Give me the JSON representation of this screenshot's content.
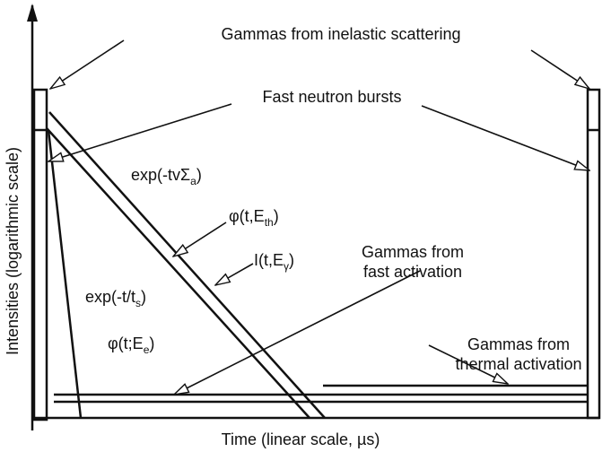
{
  "axes": {
    "x_label": "Time (linear scale, µs)",
    "y_label": "Intensities (logarithmic scale)"
  },
  "labels": {
    "inelastic": "Gammas from inelastic scattering",
    "bursts": "Fast neutron bursts",
    "fast_activation": [
      "Gammas from",
      "fast activation"
    ],
    "thermal_activation": [
      "Gammas from",
      "thermal activation"
    ]
  },
  "formulas": {
    "thermal_decay": {
      "base": "exp(-tvΣ",
      "sub": "a",
      "tail": ")"
    },
    "phi_thermal": {
      "base": "φ(t,E",
      "sub": "th",
      "tail": ")"
    },
    "gamma_intensity": {
      "base": "I(t,E",
      "sub": "γ",
      "tail": ")"
    },
    "fast_decay": {
      "base": "exp(-t/t",
      "sub": "s",
      "tail": ")"
    },
    "phi_epithermal": {
      "base": "φ(t;E",
      "sub": "e",
      "tail": ")"
    }
  }
}
